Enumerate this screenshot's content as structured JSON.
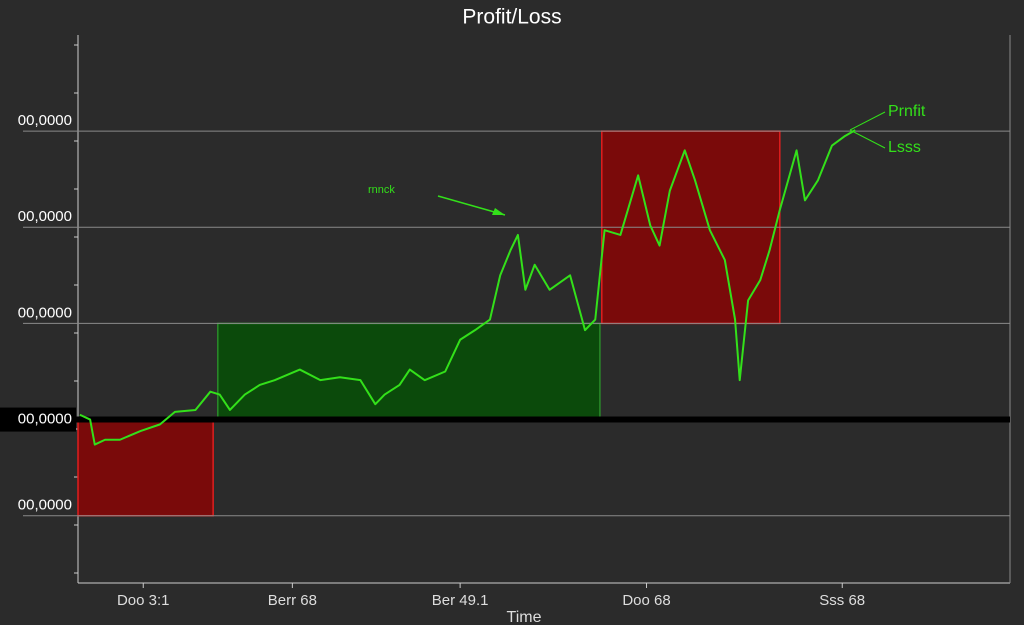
{
  "chart_data": {
    "type": "line",
    "title": "Profit/Loss",
    "x_label": "Time",
    "annotation": "rnnck",
    "legend_entries": [
      "Prnfit",
      "Lsss"
    ],
    "xlim": [
      0,
      100
    ],
    "ylim": [
      -1.7,
      4
    ],
    "xticks": [
      {
        "value": 7,
        "label": "Doo 3:1"
      },
      {
        "value": 23,
        "label": "Berr 68"
      },
      {
        "value": 41,
        "label": "Ber 49.1"
      },
      {
        "value": 61,
        "label": "Doo 68"
      },
      {
        "value": 82,
        "label": "Sss 68"
      }
    ],
    "yticks": [
      {
        "value": -1,
        "label": "00,0000"
      },
      {
        "value": 0,
        "label": "00,0000"
      },
      {
        "value": 1,
        "label": "00,0000"
      },
      {
        "value": 2,
        "label": "00,0000"
      },
      {
        "value": 3,
        "label": "00,0000"
      }
    ],
    "grid": true,
    "series": [
      {
        "name": "Prnfit",
        "color": "#33e01a",
        "x": [
          0.2,
          1.3,
          1.8,
          2.9,
          4.5,
          6.7,
          8.8,
          10.4,
          12.6,
          14.2,
          15.2,
          16.3,
          17.9,
          19.5,
          21.1,
          23.8,
          26.0,
          28.1,
          30.3,
          31.9,
          32.9,
          34.5,
          35.6,
          37.2,
          39.4,
          41.0,
          42.6,
          44.2,
          45.3,
          46.4,
          47.2,
          48.0,
          49.0,
          50.6,
          52.8,
          54.4,
          55.5,
          56.5,
          58.2,
          60.1,
          61.4,
          62.4,
          63.5,
          65.1,
          66.2,
          67.8,
          69.4,
          70.5,
          71.0,
          71.9,
          73.2,
          74.2,
          75.3,
          77.1,
          78.0,
          79.4,
          80.9,
          82.3,
          83.4
        ],
        "values": [
          0.05,
          0,
          -0.26,
          -0.21,
          -0.21,
          -0.12,
          -0.05,
          0.08,
          0.1,
          0.29,
          0.26,
          0.1,
          0.26,
          0.36,
          0.41,
          0.52,
          0.41,
          0.44,
          0.41,
          0.16,
          0.26,
          0.36,
          0.52,
          0.41,
          0.5,
          0.83,
          0.93,
          1.04,
          1.5,
          1.76,
          1.92,
          1.35,
          1.61,
          1.35,
          1.5,
          0.93,
          1.04,
          1.97,
          1.92,
          2.54,
          2.02,
          1.81,
          2.38,
          2.8,
          2.49,
          1.97,
          1.66,
          1.04,
          0.41,
          1.24,
          1.45,
          1.76,
          2.18,
          2.8,
          2.28,
          2.49,
          2.85,
          2.95,
          3.01
        ]
      }
    ],
    "zones": [
      {
        "x": [
          0,
          14.5
        ],
        "y": [
          -1,
          0
        ],
        "color": "#7a0a0a",
        "edge": "#e01e1e"
      },
      {
        "x": [
          15.0,
          56.0
        ],
        "y": [
          0,
          1
        ],
        "color": "#0b4a0b",
        "edge": "#2a8a2a"
      },
      {
        "x": [
          56.2,
          75.3
        ],
        "y": [
          1,
          3
        ],
        "color": "#7a0a0a",
        "edge": "#e01e1e"
      }
    ]
  }
}
